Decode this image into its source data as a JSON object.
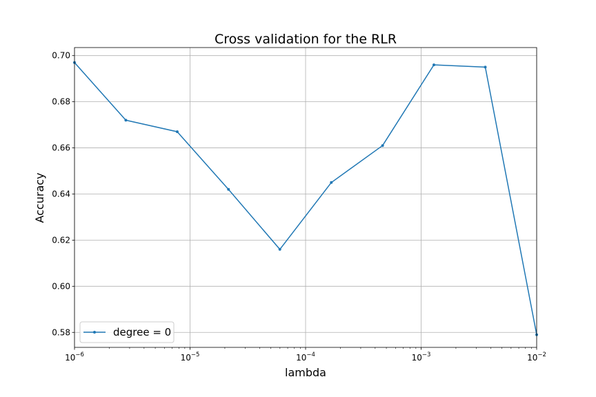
{
  "chart_data": {
    "type": "line",
    "title": "Cross validation for the RLR",
    "xlabel": "lambda",
    "ylabel": "Accuracy",
    "xscale": "log",
    "xlim": [
      1e-06,
      0.01
    ],
    "ylim": [
      0.5735,
      0.7035
    ],
    "x_ticks": [
      {
        "value": 1e-06,
        "base": "10",
        "exp": "−6"
      },
      {
        "value": 1e-05,
        "base": "10",
        "exp": "−5"
      },
      {
        "value": 0.0001,
        "base": "10",
        "exp": "−4"
      },
      {
        "value": 0.001,
        "base": "10",
        "exp": "−3"
      },
      {
        "value": 0.01,
        "base": "10",
        "exp": "−2"
      }
    ],
    "y_ticks": [
      {
        "value": 0.58,
        "label": "0.58"
      },
      {
        "value": 0.6,
        "label": "0.60"
      },
      {
        "value": 0.62,
        "label": "0.62"
      },
      {
        "value": 0.64,
        "label": "0.64"
      },
      {
        "value": 0.66,
        "label": "0.66"
      },
      {
        "value": 0.68,
        "label": "0.68"
      },
      {
        "value": 0.7,
        "label": "0.70"
      }
    ],
    "grid": true,
    "legend_position": "lower-left",
    "series": [
      {
        "name": "degree = 0",
        "color": "#1f77b4",
        "marker": "dot",
        "x": [
          1e-06,
          2.78e-06,
          7.74e-06,
          2.15e-05,
          5.99e-05,
          0.000167,
          0.000464,
          0.00129,
          0.00359,
          0.01
        ],
        "y": [
          0.697,
          0.672,
          0.667,
          0.642,
          0.616,
          0.645,
          0.661,
          0.696,
          0.695,
          0.579
        ]
      }
    ]
  }
}
